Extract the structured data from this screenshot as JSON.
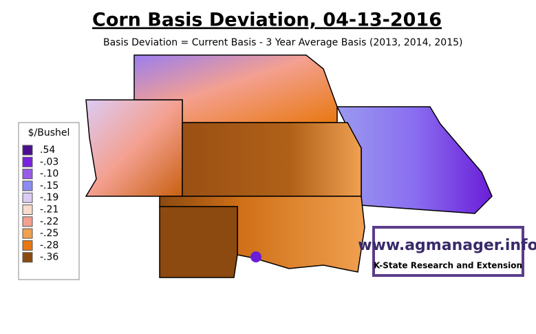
{
  "header": {
    "title": "Corn Basis Deviation, 04-13-2016",
    "subtitle": "Basis Deviation = Current Basis - 3 Year Average Basis (2013, 2014, 2015)"
  },
  "legend": {
    "title": "$/Bushel",
    "items": [
      {
        "label": ".54",
        "color": "#4b0f8c"
      },
      {
        "label": "-.03",
        "color": "#7a22e0"
      },
      {
        "label": "-.10",
        "color": "#9a5ce8"
      },
      {
        "label": "-.15",
        "color": "#8c8cf0"
      },
      {
        "label": "-.19",
        "color": "#dccbf5"
      },
      {
        "label": "-.21",
        "color": "#f9dccb"
      },
      {
        "label": "-.22",
        "color": "#f4a090"
      },
      {
        "label": "-.25",
        "color": "#f0a050"
      },
      {
        "label": "-.28",
        "color": "#e87810"
      },
      {
        "label": "-.36",
        "color": "#8c4a10"
      }
    ]
  },
  "logo": {
    "url": "www.agmanager.info",
    "org": "K-State Research and Extension"
  }
}
